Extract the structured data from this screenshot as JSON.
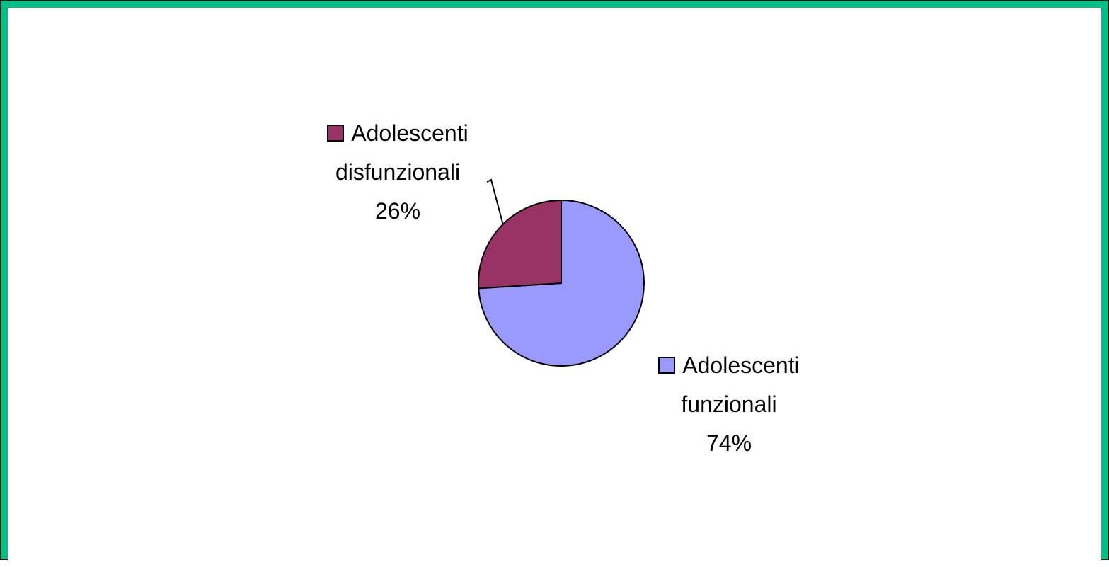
{
  "chart_data": {
    "type": "pie",
    "categories": [
      "Adolescenti funzionali",
      "Adolescenti disfunzionali"
    ],
    "values": [
      74,
      26
    ],
    "value_labels": [
      "74%",
      "26%"
    ],
    "colors": [
      "#9999ff",
      "#993366"
    ]
  }
}
